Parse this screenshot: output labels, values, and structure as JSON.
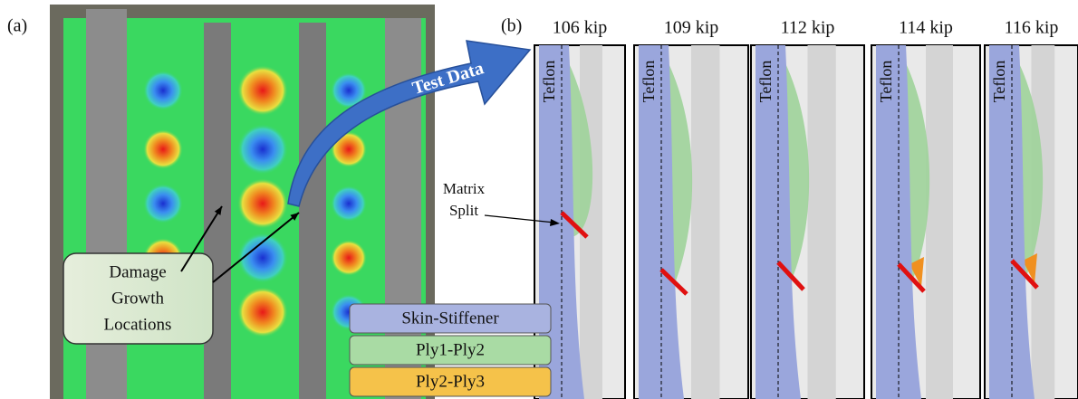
{
  "panel_a": {
    "label": "(a)",
    "callout": {
      "lines": [
        "Damage",
        "Growth",
        "Locations"
      ]
    }
  },
  "arrow_label": "Test Data",
  "panel_b": {
    "label": "(b)",
    "frames": [
      {
        "load": "106 kip",
        "teflon": "Teflon"
      },
      {
        "load": "109 kip",
        "teflon": "Teflon"
      },
      {
        "load": "112 kip",
        "teflon": "Teflon"
      },
      {
        "load": "114 kip",
        "teflon": "Teflon"
      },
      {
        "load": "116 kip",
        "teflon": "Teflon"
      }
    ],
    "annotation": {
      "lines": [
        "Matrix",
        "Split"
      ]
    }
  },
  "legend": {
    "items": [
      "Skin-Stiffener",
      "Ply1-Ply2",
      "Ply2-Ply3"
    ]
  }
}
